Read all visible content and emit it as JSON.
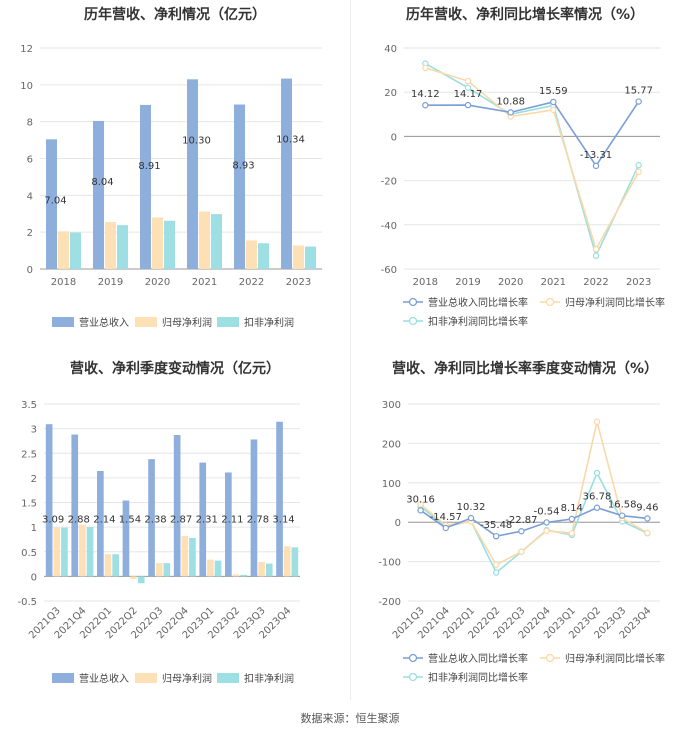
{
  "source": "数据来源：恒生聚源",
  "colors": {
    "blue": "#8eaedc",
    "orange": "#fde0b6",
    "teal": "#9edfe3",
    "blueLine": "#7a9fd6",
    "orangeLine": "#fbd8a8",
    "tealLine": "#98dfe4",
    "grid": "#e6e6e6",
    "axis": "#666666"
  },
  "chart_data": [
    {
      "id": "annual-bar",
      "type": "bar",
      "title": "历年营收、净利情况（亿元）",
      "categories": [
        "2018",
        "2019",
        "2020",
        "2021",
        "2022",
        "2023"
      ],
      "ylim": [
        0,
        12
      ],
      "yticks": [
        0,
        2,
        4,
        6,
        8,
        10,
        12
      ],
      "series": [
        {
          "name": "营业总收入",
          "color": "blue",
          "values": [
            7.04,
            8.04,
            8.91,
            10.3,
            8.93,
            10.34
          ],
          "labels": [
            "7.04",
            "8.04",
            "8.91",
            "10.30",
            "8.93",
            "10.34"
          ]
        },
        {
          "name": "归母净利润",
          "color": "orange",
          "values": [
            2.05,
            2.55,
            2.8,
            3.12,
            1.55,
            1.28
          ]
        },
        {
          "name": "扣非净利润",
          "color": "teal",
          "values": [
            1.98,
            2.38,
            2.62,
            2.98,
            1.4,
            1.22
          ]
        }
      ]
    },
    {
      "id": "annual-line",
      "type": "line",
      "title": "历年营收、净利同比增长率情况（%）",
      "categories": [
        "2018",
        "2019",
        "2020",
        "2021",
        "2022",
        "2023"
      ],
      "ylim": [
        -60,
        40
      ],
      "yticks": [
        -60,
        -40,
        -20,
        0,
        20,
        40
      ],
      "series": [
        {
          "name": "营业总收入同比增长率",
          "color": "blueLine",
          "values": [
            14.12,
            14.17,
            10.88,
            15.59,
            -13.31,
            15.77
          ],
          "labels": [
            "14.12",
            "14.17",
            "10.88",
            "15.59",
            "-13.31",
            "15.77"
          ]
        },
        {
          "name": "归母净利润同比增长率",
          "color": "orangeLine",
          "values": [
            31,
            25,
            9,
            12,
            -51,
            -16
          ]
        },
        {
          "name": "扣非净利润同比增长率",
          "color": "tealLine",
          "values": [
            33,
            22,
            10,
            14,
            -54,
            -13
          ]
        }
      ]
    },
    {
      "id": "quarter-bar",
      "type": "bar",
      "title": "营收、净利季度变动情况（亿元）",
      "categories": [
        "2021Q3",
        "2021Q4",
        "2022Q1",
        "2022Q2",
        "2022Q3",
        "2022Q4",
        "2023Q1",
        "2023Q2",
        "2023Q3",
        "2023Q4"
      ],
      "ylim": [
        -0.5,
        3.5
      ],
      "yticks": [
        -0.5,
        0,
        0.5,
        1,
        1.5,
        2,
        2.5,
        3,
        3.5
      ],
      "series": [
        {
          "name": "营业总收入",
          "color": "blue",
          "values": [
            3.09,
            2.88,
            2.14,
            1.54,
            2.38,
            2.87,
            2.31,
            2.11,
            2.78,
            3.14
          ],
          "labels": [
            "3.09",
            "2.88",
            "2.14",
            "1.54",
            "2.38",
            "2.87",
            "2.31",
            "2.11",
            "2.78",
            "3.14"
          ]
        },
        {
          "name": "归母净利润",
          "color": "orange",
          "values": [
            0.99,
            1.05,
            0.45,
            -0.05,
            0.27,
            0.82,
            0.34,
            0.04,
            0.29,
            0.61
          ]
        },
        {
          "name": "扣非净利润",
          "color": "teal",
          "values": [
            0.99,
            1.0,
            0.45,
            -0.14,
            0.27,
            0.78,
            0.32,
            0.03,
            0.26,
            0.59
          ]
        }
      ]
    },
    {
      "id": "quarter-line",
      "type": "line",
      "title": "营收、净利同比增长率季度变动情况（%）",
      "categories": [
        "2021Q3",
        "2021Q4",
        "2022Q1",
        "2022Q2",
        "2022Q3",
        "2022Q4",
        "2023Q1",
        "2023Q2",
        "2023Q3",
        "2023Q4"
      ],
      "ylim": [
        -200,
        300
      ],
      "yticks": [
        -200,
        -100,
        0,
        100,
        200,
        300
      ],
      "series": [
        {
          "name": "营业总收入同比增长率",
          "color": "blueLine",
          "values": [
            30.16,
            -14.57,
            10.32,
            -35.48,
            -22.87,
            -0.54,
            8.14,
            36.78,
            16.58,
            9.46
          ],
          "labels": [
            "30.16",
            "-14.57",
            "10.32",
            "-35.48",
            "-22.87",
            "-0.54",
            "8.14",
            "36.78",
            "16.58",
            "9.46"
          ]
        },
        {
          "name": "归母净利润同比增长率",
          "color": "orangeLine",
          "values": [
            45,
            -8,
            2,
            -108,
            -75,
            -22,
            -28,
            255,
            10,
            -27
          ]
        },
        {
          "name": "扣非净利润同比增长率",
          "color": "tealLine",
          "values": [
            40,
            -12,
            3,
            -128,
            -75,
            -20,
            -32,
            125,
            2,
            -28
          ]
        }
      ]
    }
  ]
}
